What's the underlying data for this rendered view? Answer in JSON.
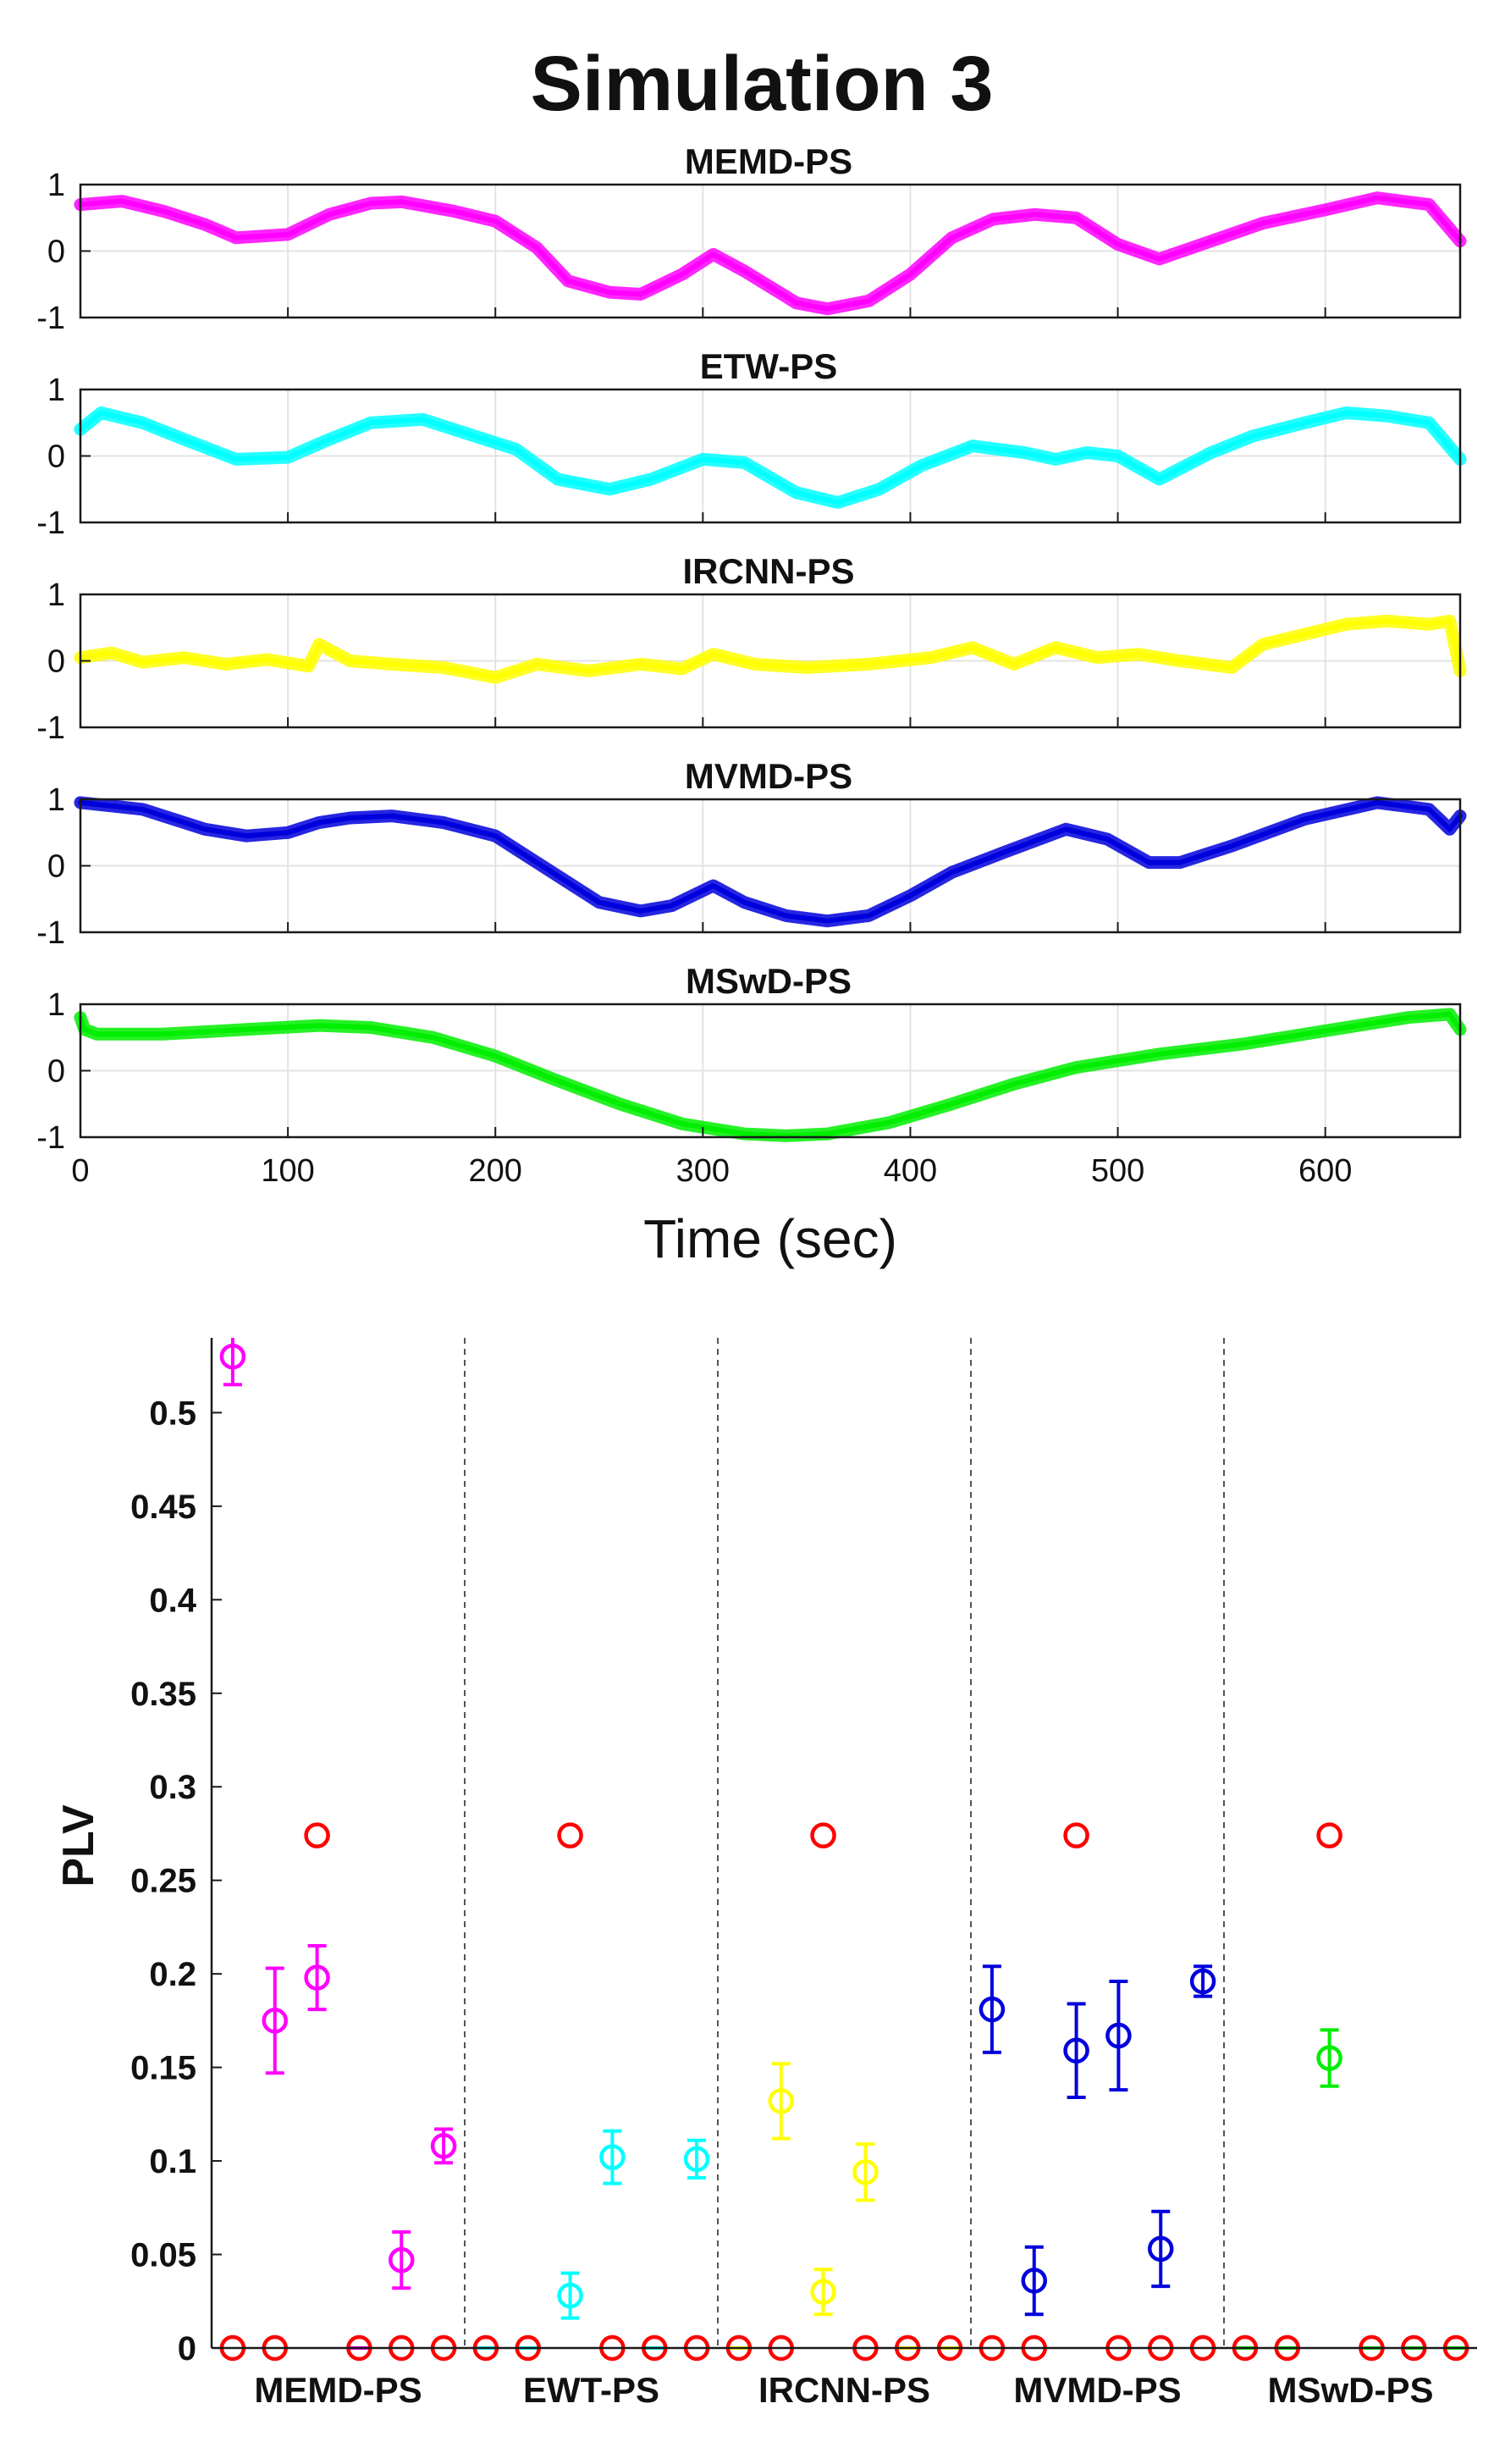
{
  "figure_title": "Simulation 3",
  "chart_data": [
    {
      "type": "line",
      "title": "MEMD-PS",
      "color": "#ff00ff",
      "xlim": [
        0,
        665
      ],
      "ylim": [
        -1,
        1
      ],
      "yticks": [
        -1,
        0,
        1
      ],
      "xticks": [
        0,
        100,
        200,
        300,
        400,
        500,
        600
      ],
      "show_xticklabels": false,
      "xlabel": "",
      "grid": true,
      "x": [
        0,
        20,
        40,
        60,
        75,
        100,
        120,
        140,
        155,
        180,
        200,
        220,
        235,
        255,
        270,
        290,
        305,
        320,
        345,
        360,
        380,
        400,
        420,
        440,
        460,
        480,
        500,
        520,
        545,
        570,
        600,
        625,
        650,
        665
      ],
      "y": [
        0.7,
        0.75,
        0.6,
        0.4,
        0.2,
        0.25,
        0.55,
        0.72,
        0.74,
        0.6,
        0.45,
        0.05,
        -0.45,
        -0.62,
        -0.65,
        -0.35,
        -0.05,
        -0.3,
        -0.78,
        -0.87,
        -0.75,
        -0.35,
        0.2,
        0.48,
        0.55,
        0.5,
        0.1,
        -0.12,
        0.15,
        0.42,
        0.62,
        0.8,
        0.7,
        0.15
      ]
    },
    {
      "type": "line",
      "title": "ETW-PS",
      "color": "#00ffff",
      "xlim": [
        0,
        665
      ],
      "ylim": [
        -1,
        1
      ],
      "yticks": [
        -1,
        0,
        1
      ],
      "xticks": [
        0,
        100,
        200,
        300,
        400,
        500,
        600
      ],
      "show_xticklabels": false,
      "xlabel": "",
      "grid": true,
      "x": [
        0,
        10,
        30,
        50,
        75,
        100,
        120,
        140,
        165,
        190,
        210,
        230,
        255,
        275,
        300,
        320,
        345,
        365,
        385,
        405,
        430,
        455,
        470,
        485,
        500,
        520,
        545,
        565,
        590,
        610,
        630,
        650,
        665
      ],
      "y": [
        0.4,
        0.65,
        0.5,
        0.25,
        -0.05,
        -0.02,
        0.25,
        0.5,
        0.55,
        0.3,
        0.1,
        -0.35,
        -0.5,
        -0.35,
        -0.05,
        -0.1,
        -0.55,
        -0.7,
        -0.5,
        -0.15,
        0.15,
        0.05,
        -0.05,
        0.05,
        0.0,
        -0.35,
        0.05,
        0.3,
        0.5,
        0.65,
        0.6,
        0.5,
        -0.05
      ]
    },
    {
      "type": "line",
      "title": "IRCNN-PS",
      "color": "#ffff00",
      "xlim": [
        0,
        665
      ],
      "ylim": [
        -1,
        1
      ],
      "yticks": [
        -1,
        0,
        1
      ],
      "xticks": [
        0,
        100,
        200,
        300,
        400,
        500,
        600
      ],
      "show_xticklabels": false,
      "xlabel": "",
      "grid": true,
      "x": [
        0,
        15,
        30,
        50,
        70,
        90,
        110,
        115,
        130,
        150,
        175,
        200,
        220,
        245,
        270,
        290,
        305,
        325,
        350,
        380,
        410,
        430,
        450,
        470,
        490,
        510,
        530,
        555,
        570,
        590,
        610,
        630,
        650,
        660,
        665
      ],
      "y": [
        0.05,
        0.12,
        -0.02,
        0.05,
        -0.05,
        0.02,
        -0.08,
        0.25,
        0.0,
        -0.05,
        -0.1,
        -0.25,
        -0.05,
        -0.15,
        -0.05,
        -0.12,
        0.1,
        -0.05,
        -0.1,
        -0.05,
        0.05,
        0.2,
        -0.05,
        0.2,
        0.05,
        0.1,
        0.0,
        -0.1,
        0.25,
        0.4,
        0.55,
        0.6,
        0.55,
        0.6,
        -0.15
      ]
    },
    {
      "type": "line",
      "title": "MVMD-PS",
      "color": "#0000dd",
      "xlim": [
        0,
        665
      ],
      "ylim": [
        -1,
        1
      ],
      "yticks": [
        -1,
        0,
        1
      ],
      "xticks": [
        0,
        100,
        200,
        300,
        400,
        500,
        600
      ],
      "show_xticklabels": false,
      "xlabel": "",
      "grid": true,
      "x": [
        0,
        30,
        60,
        80,
        100,
        115,
        130,
        150,
        175,
        200,
        220,
        250,
        270,
        285,
        305,
        320,
        340,
        360,
        380,
        400,
        420,
        445,
        475,
        495,
        515,
        530,
        555,
        590,
        625,
        650,
        660,
        665
      ],
      "y": [
        0.95,
        0.85,
        0.55,
        0.45,
        0.5,
        0.65,
        0.72,
        0.75,
        0.65,
        0.45,
        0.05,
        -0.55,
        -0.68,
        -0.6,
        -0.3,
        -0.55,
        -0.75,
        -0.83,
        -0.75,
        -0.45,
        -0.1,
        0.2,
        0.55,
        0.4,
        0.05,
        0.05,
        0.3,
        0.7,
        0.95,
        0.85,
        0.55,
        0.75
      ]
    },
    {
      "type": "line",
      "title": "MSwD-PS",
      "color": "#00ee00",
      "xlim": [
        0,
        665
      ],
      "ylim": [
        -1,
        1
      ],
      "yticks": [
        -1,
        0,
        1
      ],
      "xticks": [
        0,
        100,
        200,
        300,
        400,
        500,
        600
      ],
      "show_xticklabels": true,
      "xlabel": "Time (sec)",
      "grid": true,
      "x": [
        0,
        2,
        8,
        15,
        40,
        80,
        115,
        140,
        170,
        200,
        230,
        260,
        290,
        320,
        340,
        360,
        390,
        420,
        450,
        480,
        520,
        560,
        600,
        640,
        660,
        665
      ],
      "y": [
        0.8,
        0.62,
        0.55,
        0.55,
        0.55,
        0.62,
        0.68,
        0.65,
        0.5,
        0.22,
        -0.15,
        -0.5,
        -0.8,
        -0.95,
        -0.98,
        -0.95,
        -0.78,
        -0.5,
        -0.2,
        0.05,
        0.25,
        0.4,
        0.6,
        0.8,
        0.85,
        0.62
      ]
    },
    {
      "type": "scatter",
      "title": "",
      "xlabel": "",
      "ylabel": "PLV",
      "ylim": [
        0,
        0.54
      ],
      "yticks": [
        0,
        0.05,
        0.1,
        0.15,
        0.2,
        0.25,
        0.3,
        0.35,
        0.4,
        0.45,
        0.5
      ],
      "ytick_labels": [
        "0",
        "0.05",
        "0.1",
        "0.15",
        "0.2",
        "0.25",
        "0.3",
        "0.35",
        "0.4",
        "0.45",
        "0.5"
      ],
      "xlim": [
        0.5,
        30.5
      ],
      "grid": false,
      "group_labels": [
        "MEMD-PS",
        "EWT-PS",
        "IRCNN-PS",
        "MVMD-PS",
        "MSwD-PS"
      ],
      "group_colors": [
        "#ff00ff",
        "#00ffff",
        "#ffff00",
        "#0000dd",
        "#00ee00"
      ],
      "group_separators": [
        6.5,
        12.5,
        18.5,
        24.5
      ],
      "reference_color": "#ff0000",
      "reference_value": 0.274,
      "reference_positions": [
        3,
        9,
        15,
        21,
        27
      ],
      "zero_markers": [
        1,
        2,
        4,
        5,
        6,
        7,
        8,
        10,
        11,
        12,
        13,
        14,
        16,
        17,
        18,
        19,
        20,
        22,
        23,
        24,
        25,
        26,
        28,
        29,
        30
      ],
      "series": [
        {
          "name": "MEMD-PS",
          "points": [
            {
              "x": 1,
              "value": 0.53,
              "err": 0.015
            },
            {
              "x": 2,
              "value": 0.175,
              "err": 0.028
            },
            {
              "x": 3,
              "value": 0.198,
              "err": 0.017
            },
            {
              "x": 4,
              "value": 0.0,
              "err": 0
            },
            {
              "x": 5,
              "value": 0.047,
              "err": 0.015
            },
            {
              "x": 6,
              "value": 0.108,
              "err": 0.009
            }
          ]
        },
        {
          "name": "EWT-PS",
          "points": [
            {
              "x": 7,
              "value": 0.0,
              "err": 0
            },
            {
              "x": 8,
              "value": 0.0,
              "err": 0
            },
            {
              "x": 9,
              "value": 0.028,
              "err": 0.012
            },
            {
              "x": 10,
              "value": 0.102,
              "err": 0.014
            },
            {
              "x": 11,
              "value": 0.0,
              "err": 0
            },
            {
              "x": 12,
              "value": 0.101,
              "err": 0.01
            }
          ]
        },
        {
          "name": "IRCNN-PS",
          "points": [
            {
              "x": 13,
              "value": 0.0,
              "err": 0
            },
            {
              "x": 14,
              "value": 0.132,
              "err": 0.02
            },
            {
              "x": 15,
              "value": 0.03,
              "err": 0.012
            },
            {
              "x": 16,
              "value": 0.094,
              "err": 0.015
            },
            {
              "x": 17,
              "value": 0.0,
              "err": 0
            },
            {
              "x": 18,
              "value": 0.0,
              "err": 0
            }
          ]
        },
        {
          "name": "MVMD-PS",
          "points": [
            {
              "x": 19,
              "value": 0.181,
              "err": 0.023
            },
            {
              "x": 20,
              "value": 0.036,
              "err": 0.018
            },
            {
              "x": 21,
              "value": 0.159,
              "err": 0.025
            },
            {
              "x": 22,
              "value": 0.167,
              "err": 0.029
            },
            {
              "x": 23,
              "value": 0.053,
              "err": 0.02
            },
            {
              "x": 24,
              "value": 0.196,
              "err": 0.008
            }
          ]
        },
        {
          "name": "MSwD-PS",
          "points": [
            {
              "x": 25,
              "value": 0.0,
              "err": 0
            },
            {
              "x": 26,
              "value": 0.0,
              "err": 0
            },
            {
              "x": 27,
              "value": 0.155,
              "err": 0.015
            },
            {
              "x": 28,
              "value": 0.0,
              "err": 0
            },
            {
              "x": 29,
              "value": 0.0,
              "err": 0
            },
            {
              "x": 30,
              "value": 0.0,
              "err": 0
            }
          ]
        }
      ]
    }
  ]
}
